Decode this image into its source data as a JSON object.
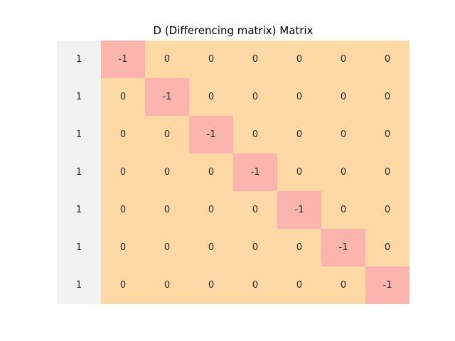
{
  "chart_data": {
    "type": "heatmap",
    "title": "D (Differencing matrix) Matrix",
    "xlabel": "",
    "ylabel": "",
    "grid": false,
    "legend": "none",
    "rows": 7,
    "cols": 8,
    "values": [
      [
        "1",
        "-1",
        "0",
        "0",
        "0",
        "0",
        "0",
        "0"
      ],
      [
        "1",
        "0",
        "-1",
        "0",
        "0",
        "0",
        "0",
        "0"
      ],
      [
        "1",
        "0",
        "0",
        "-1",
        "0",
        "0",
        "0",
        "0"
      ],
      [
        "1",
        "0",
        "0",
        "0",
        "-1",
        "0",
        "0",
        "0"
      ],
      [
        "1",
        "0",
        "0",
        "0",
        "0",
        "-1",
        "0",
        "0"
      ],
      [
        "1",
        "0",
        "0",
        "0",
        "0",
        "0",
        "-1",
        "0"
      ],
      [
        "1",
        "0",
        "0",
        "0",
        "0",
        "0",
        "0",
        "-1"
      ]
    ],
    "colors": {
      "first_column": "#f2f2f2",
      "zero": "#fed9a6",
      "negative_one": "#fbb4ae",
      "text": "#262626"
    }
  }
}
